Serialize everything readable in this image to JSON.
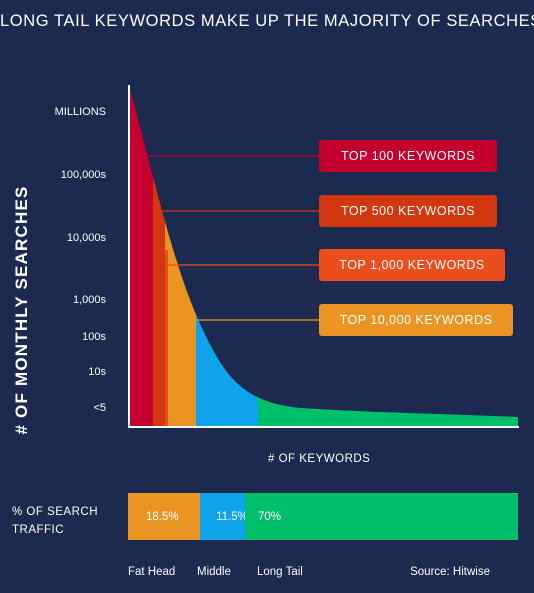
{
  "chart_data": {
    "type": "area",
    "title": "LONG TAIL KEYWORDS MAKE UP THE MAJORITY OF SEARCHES",
    "ylabel": "# OF MONTHLY SEARCHES",
    "xlabel": "# OF KEYWORDS",
    "y_ticks": [
      "MILLIONS",
      "100,000s",
      "10,000s",
      "1,000s",
      "100s",
      "10s",
      "<5"
    ],
    "y_scale": "log",
    "grid": false,
    "regions": [
      {
        "name": "TOP 100 KEYWORDS",
        "color": "#c4002f"
      },
      {
        "name": "TOP 500 KEYWORDS",
        "color": "#d2380f"
      },
      {
        "name": "TOP 1,000 KEYWORDS",
        "color": "#ea4d1e"
      },
      {
        "name": "TOP 10,000 KEYWORDS",
        "color": "#ea9424"
      },
      {
        "name": "Middle",
        "color": "#10a3ec"
      },
      {
        "name": "Long Tail",
        "color": "#00bf6a"
      }
    ],
    "callouts": [
      {
        "label": "TOP 100 KEYWORDS",
        "color": "#c4002f"
      },
      {
        "label": "TOP 500 KEYWORDS",
        "color": "#d2380f"
      },
      {
        "label": "TOP 1,000 KEYWORDS",
        "color": "#ea4d1e"
      },
      {
        "label": "TOP 10,000 KEYWORDS",
        "color": "#ea9424"
      }
    ],
    "traffic": {
      "label": "% OF SEARCH TRAFFIC",
      "segments": [
        {
          "name": "Fat Head",
          "value": 18.5,
          "display": "18.5%",
          "color": "#ea9424"
        },
        {
          "name": "Middle",
          "value": 11.5,
          "display": "11.5%",
          "color": "#10a3ec"
        },
        {
          "name": "Long Tail",
          "value": 70,
          "display": "70%",
          "color": "#00bf6a"
        }
      ]
    },
    "source": "Source: Hitwise"
  },
  "colors": {
    "background": "#1b2a4e",
    "axis": "#ffffff"
  }
}
